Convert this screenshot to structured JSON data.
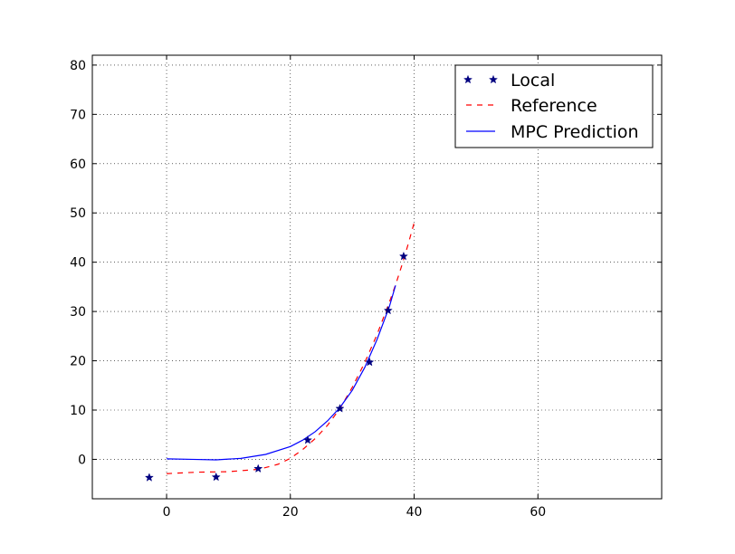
{
  "chart_data": {
    "type": "line",
    "title": "",
    "xlabel": "",
    "ylabel": "",
    "xlim": [
      -12,
      80
    ],
    "ylim": [
      -8,
      82
    ],
    "xticks": [
      0,
      20,
      40,
      60
    ],
    "yticks": [
      0,
      10,
      20,
      30,
      40,
      50,
      60,
      70,
      80
    ],
    "xtick_labels": [
      "0",
      "20",
      "40",
      "60"
    ],
    "ytick_labels": [
      "0",
      "10",
      "20",
      "30",
      "40",
      "50",
      "60",
      "70",
      "80"
    ],
    "grid": true,
    "legend_position": "top-right",
    "series": [
      {
        "name": "Local",
        "style": "markers",
        "marker": "star",
        "color": "#000080",
        "x": [
          -2.8,
          8.0,
          14.8,
          22.8,
          28.0,
          32.8,
          35.8,
          38.3
        ],
        "y": [
          -3.7,
          -3.6,
          -1.9,
          3.9,
          10.3,
          19.7,
          30.2,
          41.2
        ]
      },
      {
        "name": "Reference",
        "style": "dashed",
        "color": "#ff0000",
        "x": [
          0,
          5,
          10,
          15,
          18,
          20,
          22,
          24,
          26,
          28,
          30,
          32,
          34,
          36,
          37,
          38,
          39,
          40
        ],
        "y": [
          -2.9,
          -2.6,
          -2.5,
          -2.0,
          -1.0,
          0.2,
          2.0,
          4.2,
          6.9,
          10.3,
          14.6,
          19.6,
          25.3,
          31.9,
          35.4,
          39.3,
          43.5,
          48.0
        ]
      },
      {
        "name": "MPC Prediction",
        "style": "solid",
        "color": "#0000ff",
        "x": [
          0,
          4,
          8,
          12,
          16,
          20,
          22,
          24,
          26,
          28,
          30,
          32,
          34,
          36,
          37
        ],
        "y": [
          0.1,
          0.0,
          -0.1,
          0.2,
          1.0,
          2.6,
          3.9,
          5.6,
          7.8,
          10.5,
          14.0,
          18.6,
          24.3,
          31.0,
          35.3
        ]
      }
    ]
  }
}
